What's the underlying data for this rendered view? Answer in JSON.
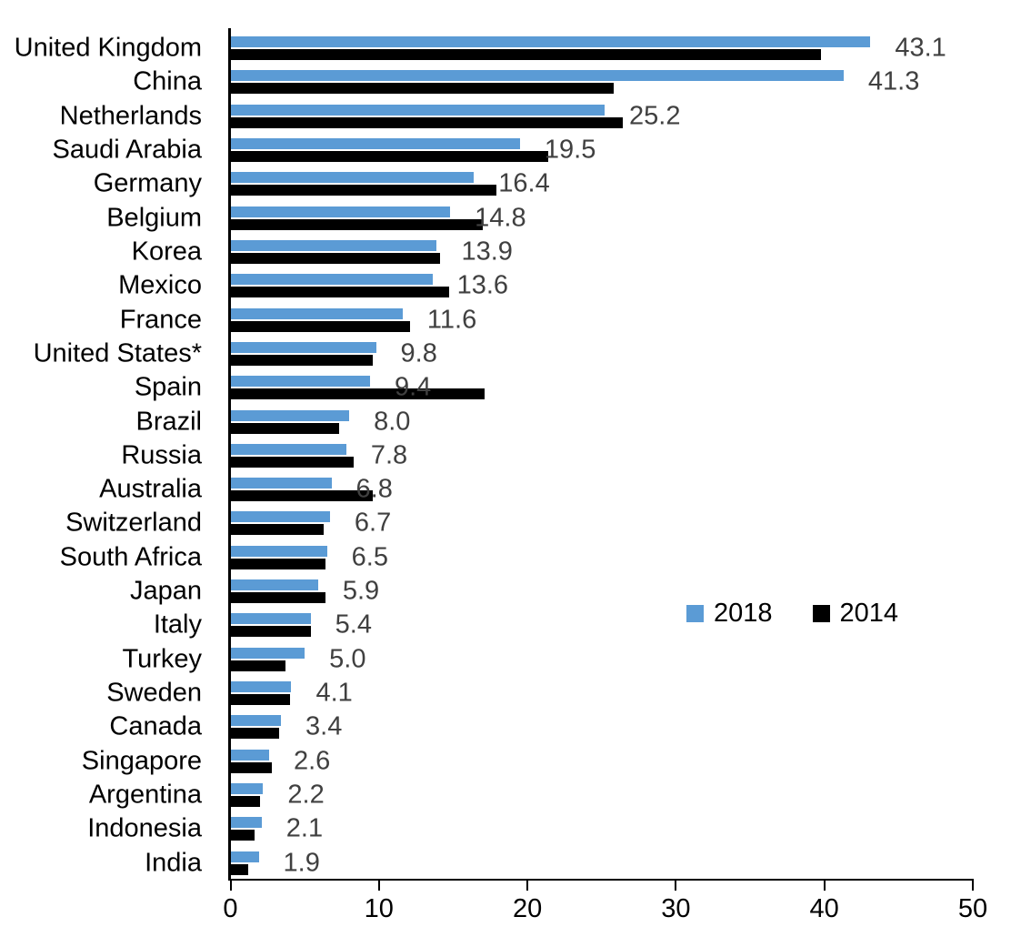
{
  "chart_data": {
    "type": "bar",
    "orientation": "horizontal",
    "title": "",
    "xlabel": "",
    "ylabel": "",
    "xlim": [
      0,
      50
    ],
    "x_ticks": [
      0,
      10,
      20,
      30,
      40,
      50
    ],
    "grid": false,
    "legend_position": "middle-right",
    "categories": [
      "United Kingdom",
      "China",
      "Netherlands",
      "Saudi Arabia",
      "Germany",
      "Belgium",
      "Korea",
      "Mexico",
      "France",
      "United States*",
      "Spain",
      "Brazil",
      "Russia",
      "Australia",
      "Switzerland",
      "South Africa",
      "Japan",
      "Italy",
      "Turkey",
      "Sweden",
      "Canada",
      "Singapore",
      "Argentina",
      "Indonesia",
      "India"
    ],
    "series": [
      {
        "name": "2018",
        "color": "#5B9BD5",
        "values": [
          43.1,
          41.3,
          25.2,
          19.5,
          16.4,
          14.8,
          13.9,
          13.6,
          11.6,
          9.8,
          9.4,
          8.0,
          7.8,
          6.8,
          6.7,
          6.5,
          5.9,
          5.4,
          5.0,
          4.1,
          3.4,
          2.6,
          2.2,
          2.1,
          1.9
        ]
      },
      {
        "name": "2014",
        "color": "#000000",
        "values": [
          39.8,
          25.8,
          26.4,
          21.4,
          17.9,
          17.0,
          14.1,
          14.7,
          12.1,
          9.6,
          17.1,
          7.3,
          8.3,
          9.6,
          6.3,
          6.4,
          6.4,
          5.4,
          3.7,
          4.0,
          3.3,
          2.8,
          2.0,
          1.6,
          1.2
        ]
      }
    ],
    "data_labels": {
      "attached_to_series": "2018",
      "labels": [
        "43.1",
        "41.3",
        "25.2",
        "19.5",
        "16.4",
        "14.8",
        "13.9",
        "13.6",
        "11.6",
        "9.8",
        "9.4",
        "8.0",
        "7.8",
        "6.8",
        "6.7",
        "6.5",
        "5.9",
        "5.4",
        "5.0",
        "4.1",
        "3.4",
        "2.6",
        "2.2",
        "2.1",
        "1.9"
      ]
    },
    "tick_labels": [
      "0",
      "10",
      "20",
      "30",
      "40",
      "50"
    ]
  },
  "legend": {
    "label_2018": "2018",
    "label_2014": "2014"
  },
  "colors": {
    "bar_2018": "#5B9BD5",
    "bar_2014": "#000000",
    "value_label_text": "#404040",
    "category_label_text": "#000000",
    "axis": "#000000"
  }
}
